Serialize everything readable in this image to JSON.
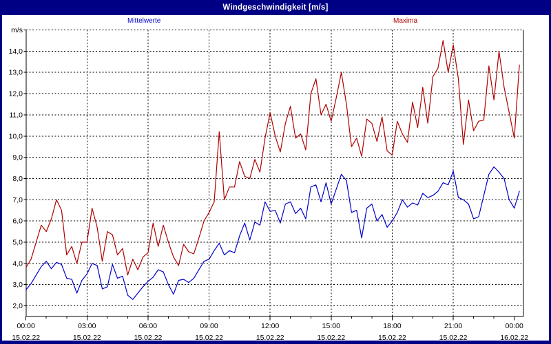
{
  "window": {
    "title": "Windgeschwindigkeit [m/s]"
  },
  "legend": {
    "mean_label": "Mittelwerte",
    "max_label": "Maxima"
  },
  "colors": {
    "frame": "#000084",
    "title_text": "#ffffff",
    "mean": "#0000cc",
    "max": "#b00000",
    "grid": "#000000",
    "background": "#ffffff"
  },
  "chart_data": {
    "type": "line",
    "title": "Windgeschwindigkeit [m/s]",
    "ylabel": "m/s",
    "xlabel": "",
    "grid": true,
    "legend_position": "top",
    "ylim": [
      1.5,
      15.0
    ],
    "xlim_hours": [
      0,
      24.45
    ],
    "x_start_hour": 0,
    "x_interval_hours": 0.25,
    "y_axis": {
      "unit_label": "m/s",
      "grid_values": [
        2,
        3,
        4,
        5,
        6,
        7,
        8,
        9,
        10,
        11,
        12,
        13,
        14,
        15
      ],
      "ticks": [
        {
          "v": 2,
          "label": "2,0"
        },
        {
          "v": 3,
          "label": "3,0"
        },
        {
          "v": 4,
          "label": "4,0"
        },
        {
          "v": 5,
          "label": "5,0"
        },
        {
          "v": 6,
          "label": "6,0"
        },
        {
          "v": 7,
          "label": "7,0"
        },
        {
          "v": 8,
          "label": "8,0"
        },
        {
          "v": 9,
          "label": "9,0"
        },
        {
          "v": 10,
          "label": "10,0"
        },
        {
          "v": 11,
          "label": "11,0"
        },
        {
          "v": 12,
          "label": "12,0"
        },
        {
          "v": 13,
          "label": "13,0"
        },
        {
          "v": 14,
          "label": "14,0"
        },
        {
          "v": 15,
          "label": "m/s"
        }
      ]
    },
    "x_axis": {
      "grid_hours": [
        3,
        6,
        9,
        12,
        15,
        18,
        21
      ],
      "major_ticks": [
        {
          "hour": 0,
          "time": "00:00",
          "date": "15.02.22"
        },
        {
          "hour": 3,
          "time": "03:00",
          "date": "15.02.22"
        },
        {
          "hour": 6,
          "time": "06:00",
          "date": "15.02.22"
        },
        {
          "hour": 9,
          "time": "09:00",
          "date": "15.02.22"
        },
        {
          "hour": 12,
          "time": "12:00",
          "date": "15.02.22"
        },
        {
          "hour": 15,
          "time": "15:00",
          "date": "15.02.22"
        },
        {
          "hour": 18,
          "time": "18:00",
          "date": "15.02.22"
        },
        {
          "hour": 21,
          "time": "21:00",
          "date": "15.02.22"
        },
        {
          "hour": 24,
          "time": "00:00",
          "date": "16.02.22"
        }
      ]
    },
    "series": [
      {
        "name": "Mittelwerte",
        "color_key": "mean",
        "values": [
          2.75,
          3.05,
          3.45,
          3.85,
          4.1,
          3.75,
          4.05,
          3.95,
          3.3,
          3.25,
          2.6,
          3.2,
          3.5,
          4.0,
          3.9,
          2.8,
          2.9,
          3.95,
          3.3,
          3.4,
          2.5,
          2.3,
          2.6,
          2.9,
          3.15,
          3.35,
          3.7,
          3.6,
          3.0,
          2.55,
          3.2,
          3.25,
          3.1,
          3.3,
          3.7,
          4.1,
          4.2,
          4.6,
          4.95,
          4.4,
          4.6,
          4.5,
          5.3,
          5.9,
          5.1,
          5.95,
          5.8,
          6.9,
          6.45,
          6.5,
          5.9,
          6.8,
          6.9,
          6.35,
          6.6,
          6.1,
          7.6,
          7.7,
          6.9,
          7.8,
          6.8,
          7.5,
          8.2,
          7.9,
          6.4,
          6.5,
          5.2,
          6.6,
          6.8,
          6.0,
          6.3,
          5.7,
          6.0,
          6.4,
          7.0,
          6.65,
          6.85,
          6.75,
          7.3,
          7.1,
          7.2,
          7.4,
          7.8,
          7.7,
          8.35,
          7.1,
          7.0,
          6.8,
          6.1,
          6.2,
          7.2,
          8.2,
          8.55,
          8.3,
          8.0,
          7.0,
          6.6,
          7.4
        ]
      },
      {
        "name": "Maxima",
        "color_key": "max",
        "values": [
          3.8,
          4.2,
          5.0,
          5.8,
          5.5,
          6.1,
          7.0,
          6.5,
          4.4,
          4.8,
          4.0,
          5.0,
          5.0,
          6.6,
          5.7,
          4.1,
          5.5,
          5.35,
          4.4,
          4.7,
          3.45,
          4.2,
          3.7,
          4.3,
          4.5,
          5.9,
          4.8,
          5.8,
          5.0,
          4.3,
          3.9,
          4.9,
          4.55,
          4.45,
          5.2,
          6.0,
          6.4,
          6.9,
          10.2,
          7.0,
          7.6,
          7.6,
          8.8,
          8.1,
          8.0,
          8.9,
          8.3,
          9.9,
          11.1,
          10.0,
          9.25,
          10.6,
          11.4,
          9.9,
          10.1,
          9.35,
          12.0,
          12.7,
          11.0,
          11.5,
          10.7,
          11.8,
          13.0,
          11.5,
          9.5,
          9.9,
          9.05,
          10.8,
          10.6,
          9.75,
          10.9,
          9.3,
          9.1,
          10.7,
          10.1,
          9.7,
          11.6,
          10.4,
          12.3,
          10.6,
          12.8,
          13.2,
          14.5,
          13.0,
          14.3,
          12.7,
          9.6,
          11.7,
          10.25,
          10.7,
          10.75,
          13.3,
          11.7,
          14.0,
          12.3,
          11.1,
          9.9,
          13.35
        ]
      }
    ]
  }
}
